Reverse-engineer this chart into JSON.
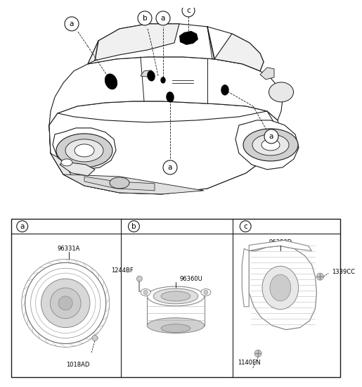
{
  "bg_color": "#ffffff",
  "lc": "#1a1a1a",
  "lw_main": 0.9,
  "lw_thin": 0.5,
  "fs_small": 6.0,
  "fs_label": 7.5,
  "panel_a_label": "a",
  "panel_b_label": "b",
  "panel_c_label": "c",
  "part_a1": "96331A",
  "part_a2": "1018AD",
  "part_b1": "1244BF",
  "part_b2": "96360U",
  "part_c1": "96380D",
  "part_c2": "1339CC",
  "part_c3": "1140EN"
}
